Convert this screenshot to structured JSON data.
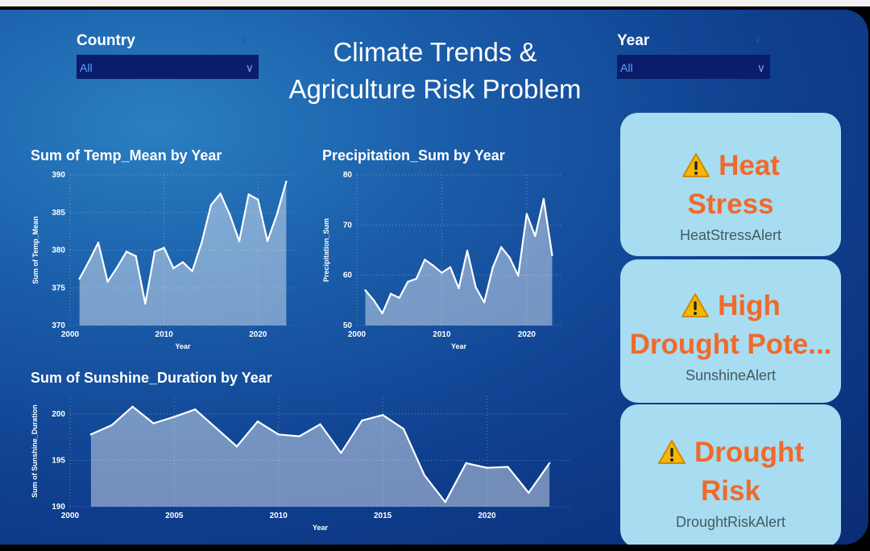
{
  "header": {
    "title_line1": "Climate Trends &",
    "title_line2": "Agriculture Risk Problem"
  },
  "filters": {
    "country": {
      "label": "Country",
      "value": "All"
    },
    "year": {
      "label": "Year",
      "value": "All"
    }
  },
  "cards": [
    {
      "head_line1": "Heat",
      "head_line2": "Stress",
      "sub": "HeatStressAlert",
      "icon": "warning-icon"
    },
    {
      "head_line1": "High",
      "head_line2": "Drought Pote...",
      "sub": "SunshineAlert",
      "icon": "warning-icon"
    },
    {
      "head_line1": "Drought",
      "head_line2": "Risk",
      "sub": "DroughtRiskAlert",
      "icon": "warning-icon"
    }
  ],
  "colors": {
    "card_bg": "#a8dcf0",
    "card_head": "#f06a2a",
    "line": "#ffffff"
  },
  "chart_data": [
    {
      "type": "area",
      "title": "Sum of Temp_Mean by Year",
      "xlabel": "Year",
      "ylabel": "Sum of Temp_Mean",
      "xlim": [
        2000,
        2024
      ],
      "ylim": [
        370,
        390
      ],
      "xticks": [
        2000,
        2010,
        2020
      ],
      "yticks": [
        370,
        375,
        380,
        385,
        390
      ],
      "x": [
        2001,
        2002,
        2003,
        2004,
        2005,
        2006,
        2007,
        2008,
        2009,
        2010,
        2011,
        2012,
        2013,
        2014,
        2015,
        2016,
        2017,
        2018,
        2019,
        2020,
        2021,
        2022,
        2023
      ],
      "y": [
        376.2,
        378.5,
        381.0,
        375.8,
        377.7,
        379.8,
        379.2,
        372.9,
        379.8,
        380.3,
        377.6,
        378.4,
        377.2,
        381.0,
        386.0,
        387.5,
        384.7,
        381.2,
        387.4,
        386.7,
        381.2,
        384.7,
        389.1
      ]
    },
    {
      "type": "area",
      "title": "Precipitation_Sum by Year",
      "xlabel": "Year",
      "ylabel": "Precipitation_Sum",
      "xlim": [
        2000,
        2024
      ],
      "ylim": [
        50,
        80
      ],
      "xticks": [
        2000,
        2010,
        2020
      ],
      "yticks": [
        50,
        60,
        70,
        80
      ],
      "x": [
        2001,
        2002,
        2003,
        2004,
        2005,
        2006,
        2007,
        2008,
        2009,
        2010,
        2011,
        2012,
        2013,
        2014,
        2015,
        2016,
        2017,
        2018,
        2019,
        2020,
        2021,
        2022,
        2023
      ],
      "y": [
        57.0,
        55.0,
        52.4,
        56.3,
        55.5,
        58.7,
        59.3,
        63.1,
        61.9,
        60.5,
        61.6,
        57.4,
        64.9,
        57.6,
        54.6,
        61.5,
        65.6,
        63.5,
        59.9,
        72.2,
        67.8,
        75.2,
        64.0
      ]
    },
    {
      "type": "area",
      "title": "Sum of Sunshine_Duration by Year",
      "xlabel": "Year",
      "ylabel": "Sum of Sunshine_Duration",
      "xlim": [
        2000,
        2024
      ],
      "ylim": [
        190,
        202
      ],
      "xticks": [
        2000,
        2005,
        2010,
        2015,
        2020
      ],
      "yticks": [
        190,
        195,
        200
      ],
      "x": [
        2001,
        2002,
        2003,
        2004,
        2005,
        2006,
        2007,
        2008,
        2009,
        2010,
        2011,
        2012,
        2013,
        2014,
        2015,
        2016,
        2017,
        2018,
        2019,
        2020,
        2021,
        2022,
        2023
      ],
      "y": [
        197.8,
        198.8,
        200.8,
        199.0,
        199.7,
        200.5,
        198.5,
        196.5,
        199.2,
        197.8,
        197.6,
        198.9,
        195.8,
        199.3,
        199.9,
        198.4,
        193.4,
        190.5,
        194.7,
        194.2,
        194.3,
        191.5,
        194.7
      ]
    }
  ]
}
